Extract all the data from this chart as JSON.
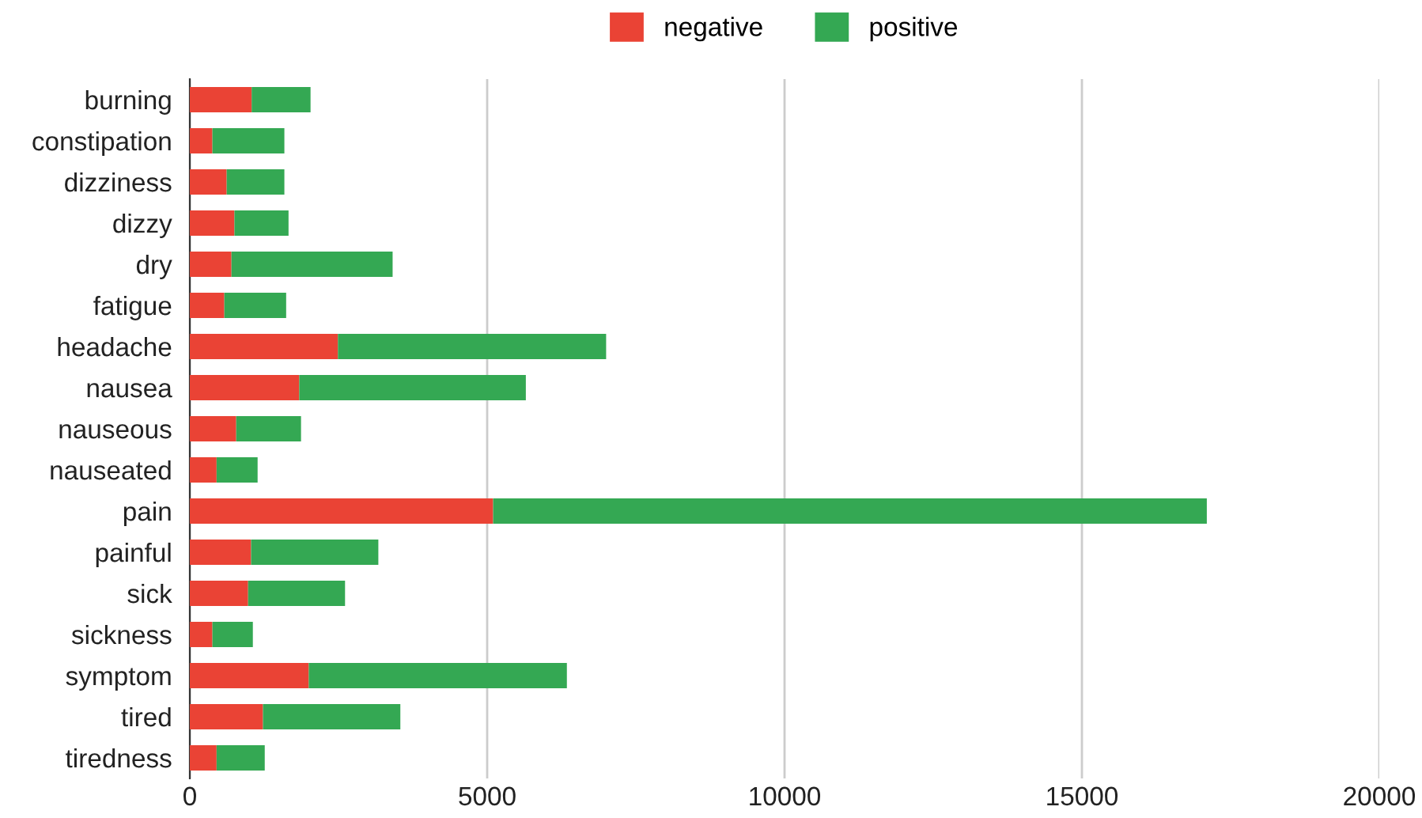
{
  "chart_data": {
    "type": "bar",
    "orientation": "horizontal",
    "stacked": true,
    "categories": [
      "burning",
      "constipation",
      "dizziness",
      "dizzy",
      "dry",
      "fatigue",
      "headache",
      "nausea",
      "nauseous",
      "nauseated",
      "pain",
      "painful",
      "sick",
      "sickness",
      "symptom",
      "tired",
      "tiredness"
    ],
    "series": [
      {
        "name": "negative",
        "color": "#ea4335",
        "values": [
          1040,
          380,
          620,
          750,
          700,
          580,
          2490,
          1840,
          780,
          450,
          5100,
          1030,
          980,
          380,
          2000,
          1230,
          450
        ]
      },
      {
        "name": "positive",
        "color": "#34a853",
        "values": [
          990,
          1210,
          970,
          910,
          2710,
          1040,
          4510,
          3810,
          1090,
          690,
          12000,
          2140,
          1630,
          680,
          4340,
          2310,
          810
        ]
      }
    ],
    "xlim": [
      0,
      20000
    ],
    "xticks": [
      0,
      5000,
      10000,
      15000,
      20000
    ],
    "grid": "x",
    "legend": "top"
  }
}
